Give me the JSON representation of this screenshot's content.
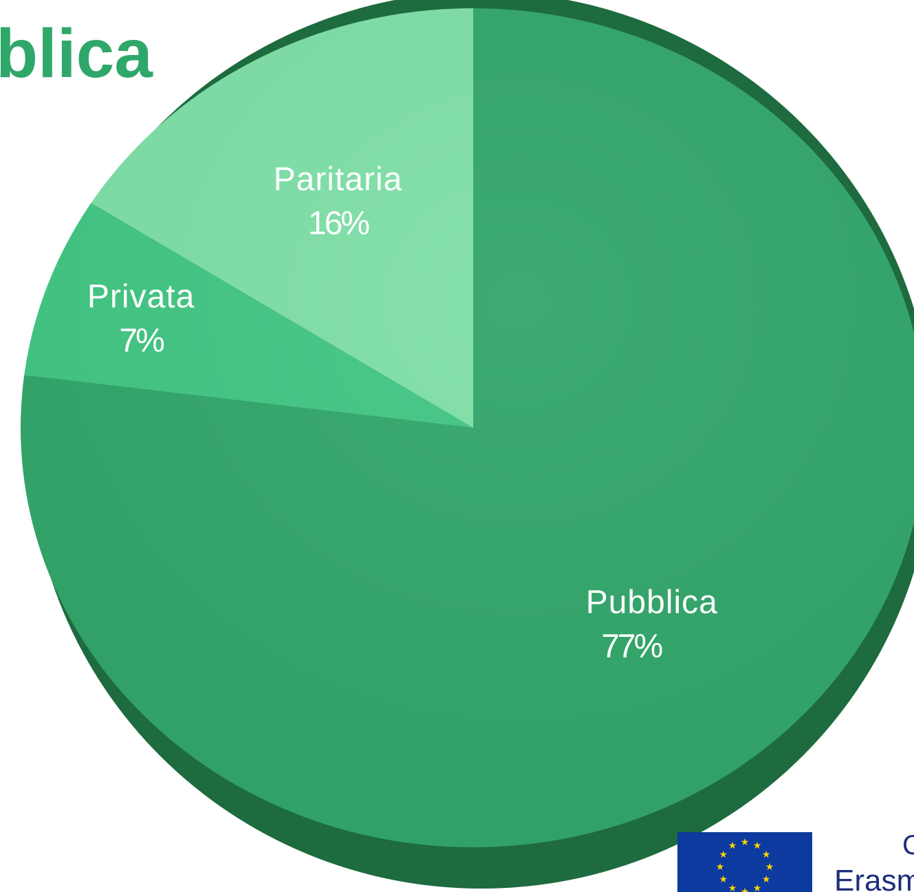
{
  "title_fragment": "blica",
  "colors": {
    "pubblica": "#31a66a",
    "privata": "#41c683",
    "paritaria": "#7edfa6",
    "title": "#2fa76a",
    "eu_flag": "#0d3a9e",
    "eu_star": "#ffd500"
  },
  "chart_data": {
    "type": "pie",
    "slices": [
      {
        "label": "Pubblica",
        "value": 77,
        "value_label": "77%"
      },
      {
        "label": "Privata",
        "value": 7,
        "value_label": "7%"
      },
      {
        "label": "Paritaria",
        "value": 16,
        "value_label": "16%"
      }
    ],
    "legend": "none"
  },
  "footer": {
    "logo_text_line1": "C",
    "logo_text_line2": "Erasm"
  }
}
